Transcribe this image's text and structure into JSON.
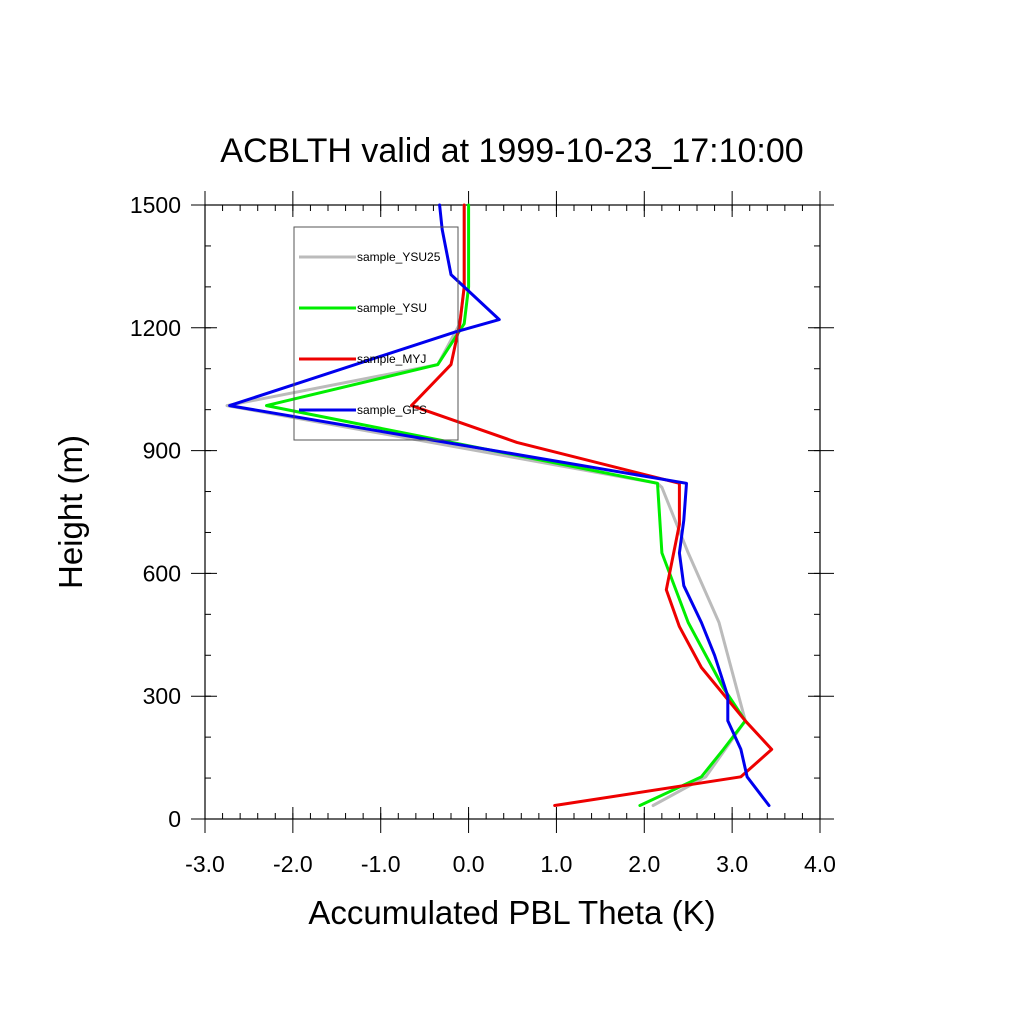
{
  "chart_data": {
    "type": "line",
    "title": "ACBLTH valid at 1999-10-23_17:10:00",
    "xlabel": "Accumulated PBL Theta (K)",
    "ylabel": "Height (m)",
    "xlim": [
      -3.0,
      4.0
    ],
    "ylim": [
      0,
      1500
    ],
    "x_major_ticks": [
      -3.0,
      -2.0,
      -1.0,
      0.0,
      1.0,
      2.0,
      3.0,
      4.0
    ],
    "x_tick_labels": [
      "-3.0",
      "-2.0",
      "-1.0",
      "0.0",
      "1.0",
      "2.0",
      "3.0",
      "4.0"
    ],
    "y_major_ticks": [
      0,
      300,
      600,
      900,
      1200,
      1500
    ],
    "y_tick_labels": [
      "0",
      "300",
      "600",
      "900",
      "1200",
      "1500"
    ],
    "x_minor_step": 0.2,
    "y_minor_step": 100,
    "grid": false,
    "legend_position": "top-left",
    "series": [
      {
        "name": "sample_YSU25",
        "color": "#bbbbbb",
        "x": [
          2.1,
          2.7,
          3.15,
          2.85,
          2.5,
          2.2,
          2.15,
          -2.75,
          -0.35,
          -0.1,
          -0.05,
          -0.05,
          -0.05
        ],
        "y": [
          33,
          103,
          240,
          480,
          650,
          810,
          820,
          1010,
          1110,
          1210,
          1300,
          1400,
          1500
        ]
      },
      {
        "name": "sample_YSU",
        "color": "#00ee00",
        "x": [
          1.95,
          2.65,
          2.9,
          3.15,
          2.9,
          2.5,
          2.2,
          2.15,
          -2.3,
          -0.35,
          -0.05,
          0.0,
          0.0,
          0.0
        ],
        "y": [
          33,
          103,
          170,
          240,
          320,
          480,
          650,
          820,
          1010,
          1110,
          1210,
          1300,
          1400,
          1500
        ]
      },
      {
        "name": "sample_MYJ",
        "color": "#ee0000",
        "x": [
          0.98,
          3.1,
          3.45,
          3.15,
          2.65,
          2.4,
          2.25,
          2.4,
          2.4,
          0.55,
          -0.65,
          -0.2,
          -0.1,
          -0.05,
          -0.05
        ],
        "y": [
          33,
          103,
          170,
          240,
          370,
          470,
          560,
          720,
          820,
          920,
          1010,
          1110,
          1210,
          1300,
          1500
        ]
      },
      {
        "name": "sample_GFS",
        "color": "#0000ee",
        "x": [
          3.42,
          3.17,
          3.1,
          2.95,
          2.95,
          2.8,
          2.65,
          2.45,
          2.4,
          2.45,
          2.48,
          -2.72,
          -0.15,
          0.35,
          -0.2,
          -0.3,
          -0.33
        ],
        "y": [
          33,
          103,
          170,
          240,
          300,
          400,
          480,
          570,
          650,
          730,
          820,
          1010,
          1190,
          1220,
          1330,
          1440,
          1500
        ]
      }
    ]
  }
}
